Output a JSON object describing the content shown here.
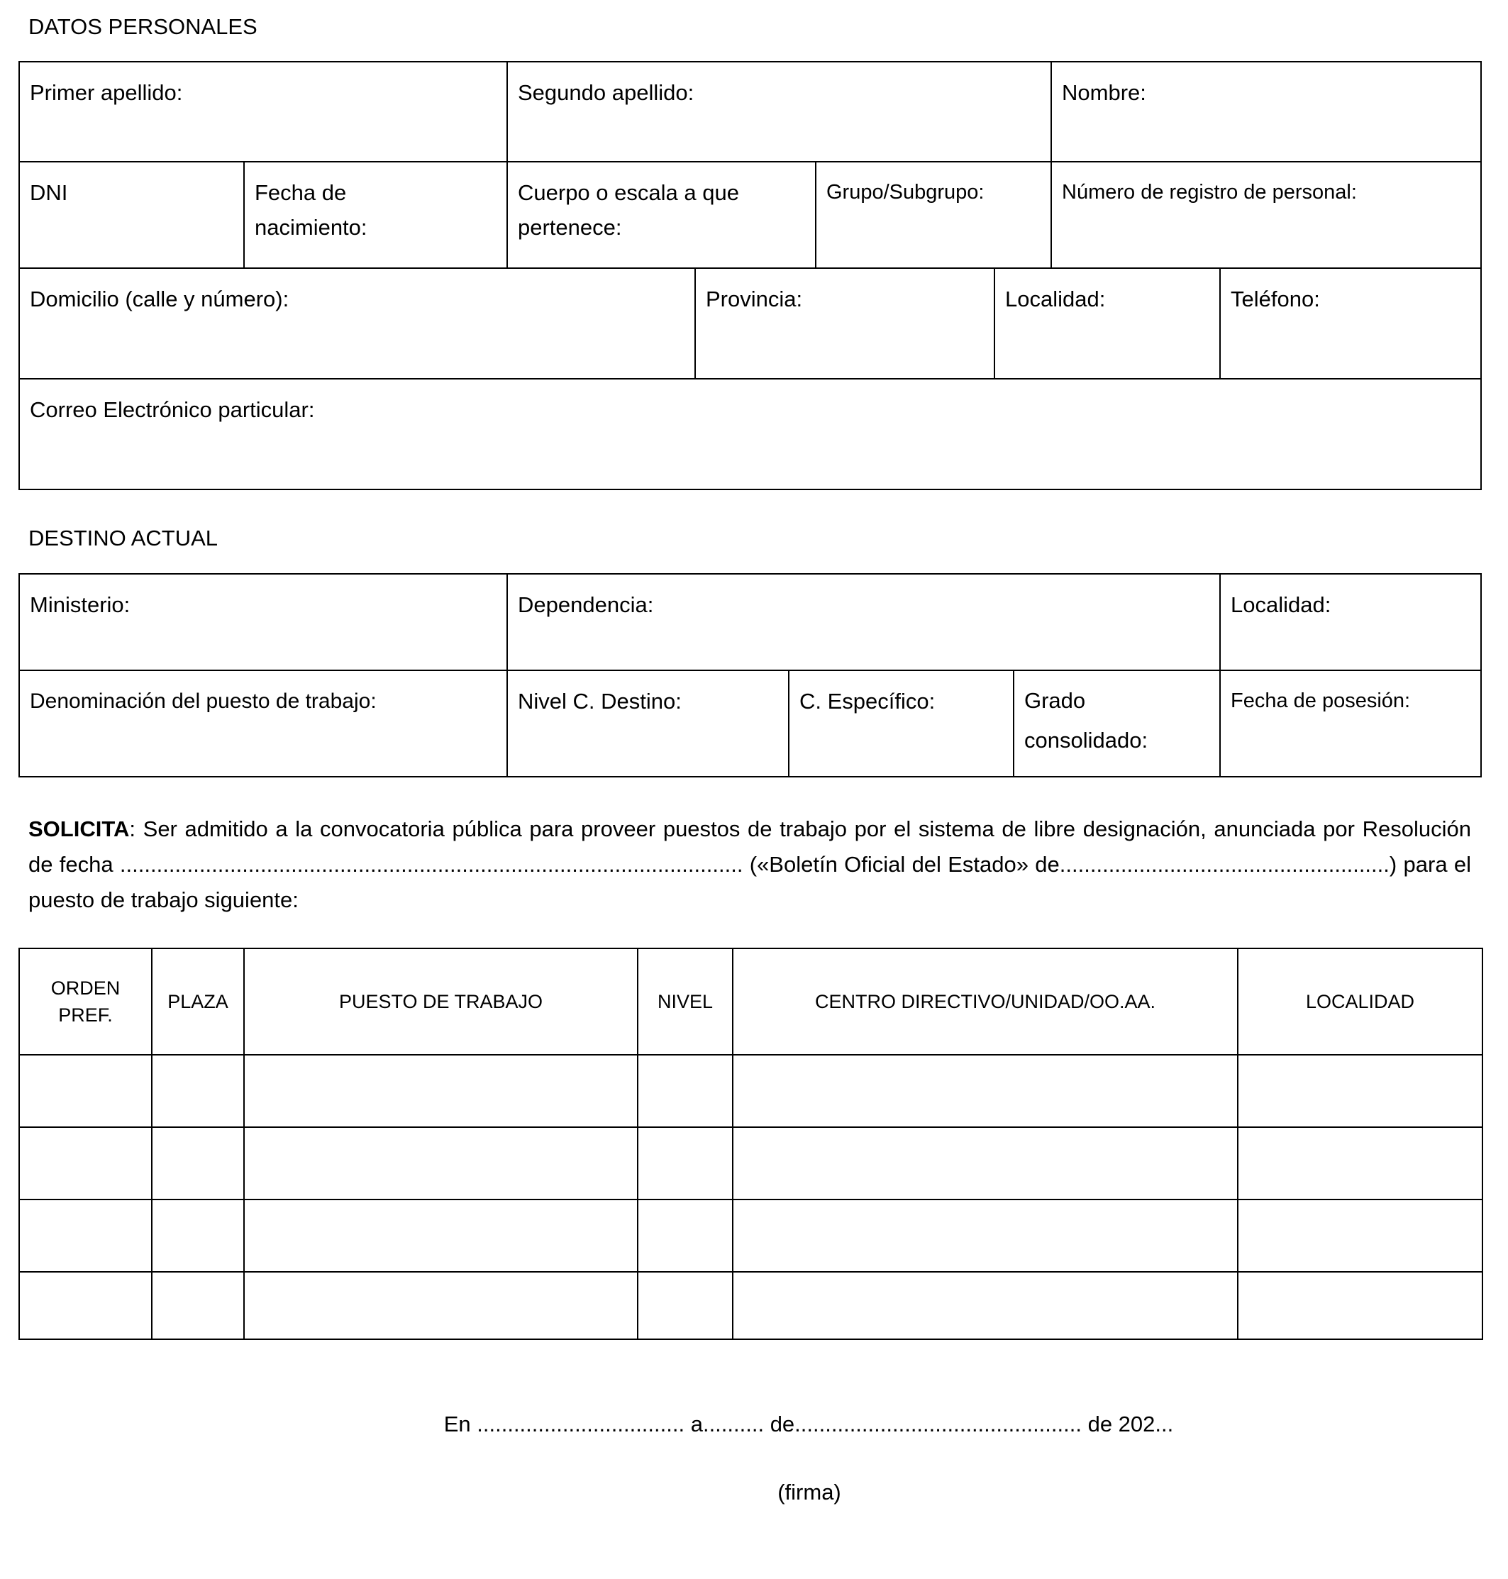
{
  "datos_personales": {
    "title": "DATOS PERSONALES",
    "fields": {
      "primer_apellido": "Primer apellido:",
      "segundo_apellido": "Segundo apellido:",
      "nombre": "Nombre:",
      "dni": "DNI",
      "fecha_nacimiento": "Fecha de nacimiento:",
      "cuerpo_escala": "Cuerpo o escala a que pertenece:",
      "grupo_subgrupo": "Grupo/Subgrupo:",
      "numero_registro": "Número de registro de personal:",
      "domicilio": "Domicilio (calle y número):",
      "provincia": "Provincia:",
      "localidad": "Localidad:",
      "telefono": "Teléfono:",
      "correo": "Correo Electrónico particular:"
    }
  },
  "destino_actual": {
    "title": "DESTINO ACTUAL",
    "fields": {
      "ministerio": "Ministerio:",
      "dependencia": "Dependencia:",
      "localidad": "Localidad:",
      "denominacion": "Denominación del puesto de trabajo:",
      "nivel_destino": "Nivel C. Destino:",
      "especifico": "C. Específico:",
      "grado": "Grado consolidado:",
      "fecha_posesion": "Fecha de posesión:"
    }
  },
  "solicita": {
    "label": "SOLICITA",
    "text": ": Ser admitido a la convocatoria pública para proveer puestos de trabajo por el sistema de libre designación, anunciada por Resolución de fecha ...................................................................................................... («Boletín Oficial del Estado» de......................................................) para el puesto de trabajo siguiente:"
  },
  "puestos_table": {
    "headers": [
      "ORDEN PREF.",
      "PLAZA",
      "PUESTO DE TRABAJO",
      "NIVEL",
      "CENTRO DIRECTIVO/UNIDAD/OO.AA.",
      "LOCALIDAD"
    ]
  },
  "footer": {
    "place_date": "En ..................................  a..........  de............................................... de 202...",
    "signature": "(firma)"
  }
}
